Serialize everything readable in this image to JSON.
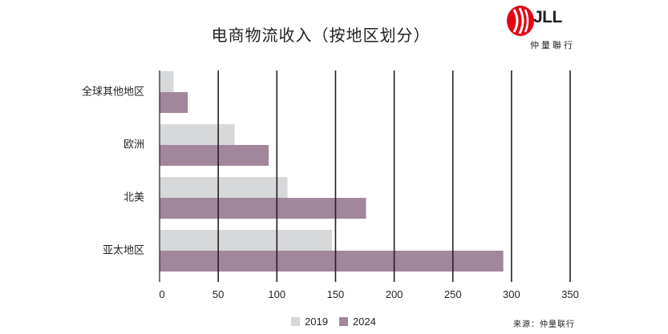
{
  "title": "电商物流收入（按地区划分）",
  "logo": {
    "brand": "JLL",
    "subtitle": "仲量聯行"
  },
  "source": "来源：仲量联行",
  "colors": {
    "2019": "#d6d8da",
    "2024": "#a2869b",
    "axis": "#231f20",
    "text": "#231f20"
  },
  "chart_data": {
    "type": "bar",
    "orientation": "horizontal",
    "categories": [
      "全球其他地区",
      "欧洲",
      "北美",
      "亚太地区"
    ],
    "series": [
      {
        "name": "2019",
        "values": [
          12,
          64,
          109,
          147
        ]
      },
      {
        "name": "2024",
        "values": [
          24,
          93,
          176,
          293
        ]
      }
    ],
    "xlim": [
      0,
      350
    ],
    "xticks": [
      0,
      50,
      100,
      150,
      200,
      250,
      300,
      350
    ],
    "grid": true,
    "legend": "bottom-center"
  }
}
